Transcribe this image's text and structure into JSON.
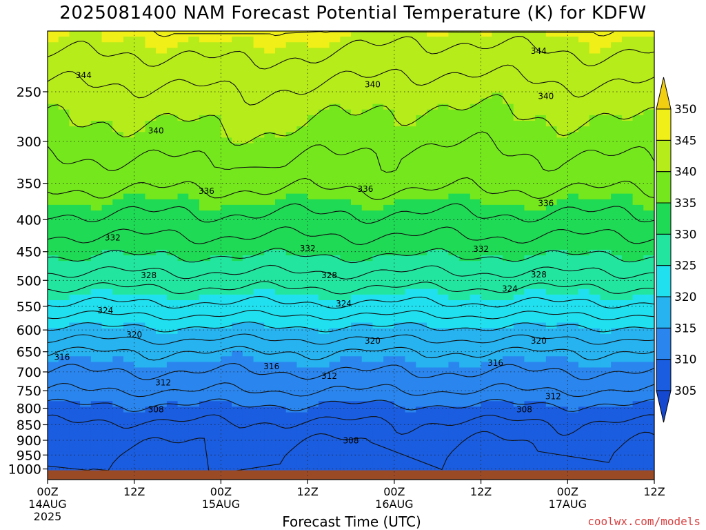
{
  "title": "2025081400 NAM Forecast Potential Temperature (K) for KDFW",
  "watermark": "coolwx.com/models",
  "colors": {
    "ground": "#9b4a26",
    "bins": [
      "#1a5de0",
      "#2a86ee",
      "#27b3f0",
      "#20e0f0",
      "#22e6a0",
      "#1fda55",
      "#74e81c",
      "#b6ec1a",
      "#f0f018"
    ]
  },
  "chart_data": {
    "type": "heatmap",
    "title": "2025081400 NAM Forecast Potential Temperature (K) for KDFW",
    "xlabel": "Forecast Time (UTC)",
    "ylabel": "",
    "x_ticks": [
      {
        "hour": 0,
        "time": "00Z",
        "date": "14AUG",
        "year": "2025"
      },
      {
        "hour": 12,
        "time": "12Z",
        "date": "",
        "year": ""
      },
      {
        "hour": 24,
        "time": "00Z",
        "date": "15AUG",
        "year": ""
      },
      {
        "hour": 36,
        "time": "12Z",
        "date": "",
        "year": ""
      },
      {
        "hour": 48,
        "time": "00Z",
        "date": "16AUG",
        "year": ""
      },
      {
        "hour": 60,
        "time": "12Z",
        "date": "",
        "year": ""
      },
      {
        "hour": 72,
        "time": "00Z",
        "date": "17AUG",
        "year": ""
      },
      {
        "hour": 84,
        "time": "12Z",
        "date": "",
        "year": ""
      }
    ],
    "xlim": [
      0,
      84
    ],
    "y_ticks": [
      250,
      300,
      350,
      400,
      450,
      500,
      550,
      600,
      650,
      700,
      750,
      800,
      850,
      900,
      950,
      1000
    ],
    "ylim": [
      1040,
      200
    ],
    "y_scale": "log-pressure",
    "grid": true,
    "colorbar": {
      "levels": [
        305,
        310,
        315,
        320,
        325,
        330,
        335,
        340,
        345,
        350
      ],
      "extend": "both"
    },
    "contour_interval": 2,
    "contour_label_values": [
      344,
      340,
      336,
      332,
      328,
      324,
      320,
      316,
      312,
      308
    ],
    "profile": [
      {
        "p": 1000,
        "theta": 306.5
      },
      {
        "p": 950,
        "theta": 306.5
      },
      {
        "p": 900,
        "theta": 307.0
      },
      {
        "p": 850,
        "theta": 307.8
      },
      {
        "p": 800,
        "theta": 309.5
      },
      {
        "p": 750,
        "theta": 312.0
      },
      {
        "p": 700,
        "theta": 314.0
      },
      {
        "p": 650,
        "theta": 316.0
      },
      {
        "p": 600,
        "theta": 319.5
      },
      {
        "p": 550,
        "theta": 323.5
      },
      {
        "p": 500,
        "theta": 327.0
      },
      {
        "p": 450,
        "theta": 330.5
      },
      {
        "p": 400,
        "theta": 333.5
      },
      {
        "p": 350,
        "theta": 336.5
      },
      {
        "p": 300,
        "theta": 339.0
      },
      {
        "p": 250,
        "theta": 341.5
      },
      {
        "p": 200,
        "theta": 345.5
      }
    ],
    "contour_labels": [
      {
        "value": 344,
        "hour": 5,
        "p": 235
      },
      {
        "value": 344,
        "hour": 68,
        "p": 215
      },
      {
        "value": 340,
        "hour": 15,
        "p": 288
      },
      {
        "value": 340,
        "hour": 45,
        "p": 243
      },
      {
        "value": 340,
        "hour": 69,
        "p": 254
      },
      {
        "value": 336,
        "hour": 22,
        "p": 360
      },
      {
        "value": 336,
        "hour": 44,
        "p": 357
      },
      {
        "value": 336,
        "hour": 69,
        "p": 376
      },
      {
        "value": 332,
        "hour": 9,
        "p": 427
      },
      {
        "value": 332,
        "hour": 36,
        "p": 444
      },
      {
        "value": 332,
        "hour": 60,
        "p": 445
      },
      {
        "value": 328,
        "hour": 14,
        "p": 490
      },
      {
        "value": 328,
        "hour": 39,
        "p": 490
      },
      {
        "value": 328,
        "hour": 68,
        "p": 489
      },
      {
        "value": 324,
        "hour": 8,
        "p": 558
      },
      {
        "value": 324,
        "hour": 41,
        "p": 544
      },
      {
        "value": 324,
        "hour": 64,
        "p": 515
      },
      {
        "value": 320,
        "hour": 12,
        "p": 610
      },
      {
        "value": 320,
        "hour": 45,
        "p": 624
      },
      {
        "value": 320,
        "hour": 68,
        "p": 624
      },
      {
        "value": 316,
        "hour": 2,
        "p": 662
      },
      {
        "value": 316,
        "hour": 31,
        "p": 685
      },
      {
        "value": 316,
        "hour": 62,
        "p": 677
      },
      {
        "value": 312,
        "hour": 16,
        "p": 727
      },
      {
        "value": 312,
        "hour": 39,
        "p": 710
      },
      {
        "value": 312,
        "hour": 70,
        "p": 765
      },
      {
        "value": 308,
        "hour": 15,
        "p": 803
      },
      {
        "value": 308,
        "hour": 42,
        "p": 900
      },
      {
        "value": 308,
        "hour": 66,
        "p": 803
      }
    ]
  }
}
